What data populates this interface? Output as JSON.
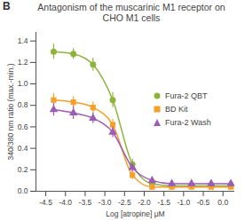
{
  "chart_data": {
    "type": "line",
    "panel_label": "B",
    "title": "Antagonism of the muscarinic M1 receptor on CHO M1 cells",
    "x_label": "Log [atropine] μM",
    "y_label": "340/380 nm ratio (max.-min.)",
    "xlim": [
      -4.75,
      0.3
    ],
    "ylim": [
      0,
      1.48
    ],
    "xticks": [
      {
        "value": -4.5,
        "label": "-4.5"
      },
      {
        "value": -4.0,
        "label": "-4.0"
      },
      {
        "value": -3.5,
        "label": "-3.5"
      },
      {
        "value": -3.0,
        "label": "-3.0"
      },
      {
        "value": -2.5,
        "label": "-2.5"
      },
      {
        "value": -2.0,
        "label": "-2.0"
      },
      {
        "value": -1.5,
        "label": "-1.5"
      },
      {
        "value": -1.0,
        "label": "-1.0"
      },
      {
        "value": -0.5,
        "label": "-0.5"
      },
      {
        "value": 0,
        "label": "0.0"
      }
    ],
    "yticks": [
      {
        "value": 0,
        "label": "0.0"
      },
      {
        "value": 0.2,
        "label": "0.2"
      },
      {
        "value": 0.4,
        "label": "0.4"
      },
      {
        "value": 0.6,
        "label": "0.6"
      },
      {
        "value": 0.8,
        "label": "0.8"
      },
      {
        "value": 1.0,
        "label": "1.0"
      },
      {
        "value": 1.2,
        "label": "1.2"
      },
      {
        "value": 1.4,
        "label": "1.4"
      }
    ],
    "grid": false,
    "legend": "right",
    "x": [
      -4.3,
      -3.8,
      -3.3,
      -2.8,
      -2.3,
      -1.8,
      -1.3,
      -0.8,
      -0.3,
      0.2
    ],
    "series": [
      {
        "name": "Fura-2 QBT",
        "color": "#8db33a",
        "marker": "circle",
        "values": [
          1.3,
          1.28,
          1.18,
          0.85,
          0.25,
          0.07,
          0.05,
          0.05,
          0.05,
          0.05
        ],
        "errors": [
          0.07,
          0.05,
          0.06,
          0.07,
          0.05,
          0.02,
          0.02,
          0.02,
          0.02,
          0.02
        ]
      },
      {
        "name": "BD Kit",
        "color": "#f5a02a",
        "marker": "square",
        "values": [
          0.85,
          0.83,
          0.78,
          0.62,
          0.15,
          0.04,
          0.04,
          0.04,
          0.04,
          0.04
        ],
        "errors": [
          0.06,
          0.05,
          0.05,
          0.05,
          0.04,
          0.02,
          0.02,
          0.02,
          0.02,
          0.02
        ]
      },
      {
        "name": "Fura-2 Wash",
        "color": "#9b5cb4",
        "marker": "triangle",
        "values": [
          0.76,
          0.73,
          0.68,
          0.55,
          0.22,
          0.1,
          0.07,
          0.07,
          0.07,
          0.07
        ],
        "errors": [
          0.06,
          0.06,
          0.05,
          0.05,
          0.04,
          0.03,
          0.03,
          0.03,
          0.03,
          0.03
        ]
      }
    ]
  }
}
